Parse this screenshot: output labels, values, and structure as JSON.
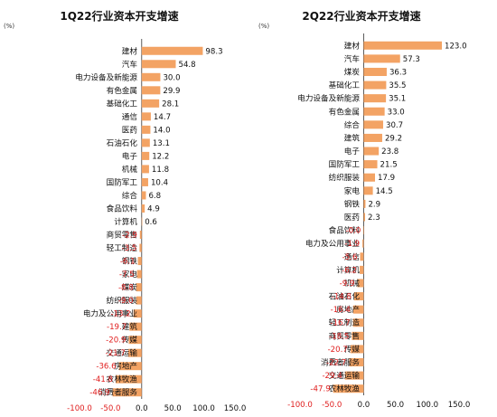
{
  "chart_data": [
    {
      "type": "bar",
      "orientation": "horizontal",
      "title": "1Q22行业资本开支增速",
      "unit": "(%)",
      "xlim": [
        -100,
        150
      ],
      "xticks": [
        -100.0,
        -50.0,
        0.0,
        50.0,
        100.0,
        150.0
      ],
      "xtick_labels": [
        "-100.0",
        "-50.0",
        "0.0",
        "50.0",
        "100.0",
        "150.0"
      ],
      "grid": false,
      "categories": [
        "建材",
        "汽车",
        "电力设备及新能源",
        "有色金属",
        "基础化工",
        "通信",
        "医药",
        "石油石化",
        "电子",
        "机械",
        "国防军工",
        "综合",
        "食品饮料",
        "计算机",
        "商贸零售",
        "轻工制造",
        "钢铁",
        "家电",
        "煤炭",
        "纺织服装",
        "电力及公用事业",
        "建筑",
        "传媒",
        "交通运输",
        "房地产",
        "农林牧渔",
        "消费者服务"
      ],
      "values": [
        98.3,
        54.8,
        30.0,
        29.9,
        28.1,
        14.7,
        14.0,
        13.1,
        12.2,
        11.8,
        10.4,
        6.8,
        4.9,
        0.6,
        -2.9,
        -3.5,
        -6.1,
        -7.5,
        -8.8,
        -9.0,
        -13.2,
        -19.7,
        -20.9,
        -21.7,
        -36.6,
        -41.8,
        -46.9
      ],
      "value_labels": [
        "98.3",
        "54.8",
        "30.0",
        "29.9",
        "28.1",
        "14.7",
        "14.0",
        "13.1",
        "12.2",
        "11.8",
        "10.4",
        "6.8",
        "4.9",
        "0.6",
        "-2.9",
        "-3.5",
        "-6.1",
        "-7.5",
        "-8.8",
        "-9.0",
        "-13.2",
        "-19.7",
        "-20.9",
        "-21.7",
        "-36.6",
        "-41.8",
        "-46.9"
      ],
      "bar_color": "#f3a364",
      "negative_label_color": "#e02020"
    },
    {
      "type": "bar",
      "orientation": "horizontal",
      "title": "2Q22行业资本开支增速",
      "unit": "(%)",
      "xlim": [
        -100,
        150
      ],
      "xticks": [
        -100.0,
        -50.0,
        0.0,
        50.0,
        100.0,
        150.0
      ],
      "xtick_labels": [
        "-100.0",
        "-50.0",
        "0.0",
        "50.0",
        "100.0",
        "150.0"
      ],
      "grid": false,
      "categories": [
        "建材",
        "汽车",
        "煤炭",
        "基础化工",
        "电力设备及新能源",
        "有色金属",
        "综合",
        "建筑",
        "电子",
        "国防军工",
        "纺织服装",
        "家电",
        "钢铁",
        "医药",
        "食品饮料",
        "电力及公用事业",
        "通信",
        "计算机",
        "机械",
        "石油石化",
        "房地产",
        "轻工制造",
        "商贸零售",
        "传媒",
        "消费者服务",
        "交通运输",
        "农林牧渔"
      ],
      "values": [
        123.0,
        57.3,
        36.3,
        35.5,
        35.1,
        33.0,
        30.7,
        29.2,
        23.8,
        21.5,
        17.9,
        14.5,
        2.9,
        2.3,
        -0.0,
        -1.9,
        -5.6,
        -6.2,
        -9.9,
        -14.8,
        -16.4,
        -16.7,
        -18.5,
        -20.7,
        -22.7,
        -29.4,
        -47.9
      ],
      "value_labels": [
        "123.0",
        "57.3",
        "36.3",
        "35.5",
        "35.1",
        "33.0",
        "30.7",
        "29.2",
        "23.8",
        "21.5",
        "17.9",
        "14.5",
        "2.9",
        "2.3",
        "-0.0",
        "-1.9",
        "-5.6",
        "-6.2",
        "-9.9",
        "-14.8",
        "-16.4",
        "-16.7",
        "-18.5",
        "-20.7",
        "-22.7",
        "-29.4",
        "-47.9"
      ],
      "bar_color": "#f3a364",
      "negative_label_color": "#e02020"
    }
  ]
}
